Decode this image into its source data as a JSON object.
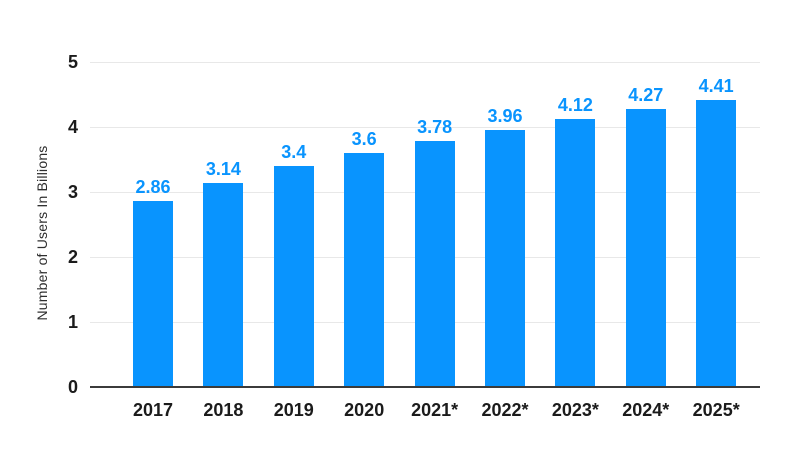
{
  "chart_data": {
    "type": "bar",
    "title": "",
    "xlabel": "",
    "ylabel": "Number of Users In Billions",
    "categories": [
      "2017",
      "2018",
      "2019",
      "2020",
      "2021*",
      "2022*",
      "2023*",
      "2024*",
      "2025*"
    ],
    "values": [
      2.86,
      3.14,
      3.4,
      3.6,
      3.78,
      3.96,
      4.12,
      4.27,
      4.41
    ],
    "value_labels": [
      "2.86",
      "3.14",
      "3.4",
      "3.6",
      "3.78",
      "3.96",
      "4.12",
      "4.27",
      "4.41"
    ],
    "yticks": [
      0,
      1,
      2,
      3,
      4,
      5
    ],
    "ylim": [
      0,
      5
    ],
    "grid": true,
    "legend_position": "none",
    "colors": {
      "bar": "#0994fe",
      "value_label": "#0994fe",
      "axis_text": "#1b1b1b",
      "gridline": "#e8e8e8",
      "axis_line": "#3b3b3b",
      "background": "#ffffff"
    }
  }
}
